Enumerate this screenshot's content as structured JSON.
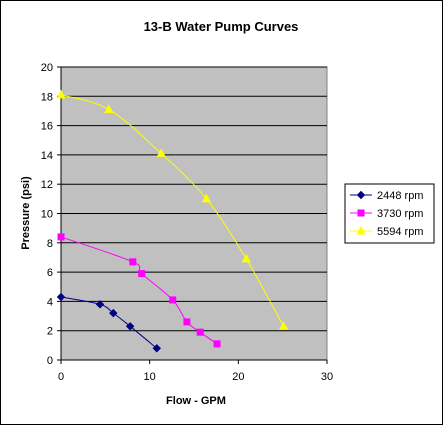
{
  "chart_data": {
    "type": "line",
    "title": "13-B Water Pump Curves",
    "xlabel": "Flow - GPM",
    "ylabel": "Pressure (psi)",
    "xlim": [
      0,
      30
    ],
    "ylim": [
      0,
      20
    ],
    "xticks": [
      "0",
      "10",
      "20",
      "30"
    ],
    "yticks": [
      "0",
      "2",
      "4",
      "6",
      "8",
      "10",
      "12",
      "14",
      "16",
      "18",
      "20"
    ],
    "grid": "horizontal",
    "legend_position": "right",
    "plot_background": "#c0c0c0",
    "series": [
      {
        "name": "2448 rpm",
        "color": "#000080",
        "marker": "diamond",
        "points": [
          [
            0,
            4.3
          ],
          [
            4.4,
            3.8
          ],
          [
            5.9,
            3.2
          ],
          [
            7.8,
            2.3
          ],
          [
            10.8,
            0.8
          ]
        ]
      },
      {
        "name": "3730 rpm",
        "color": "#ff00ff",
        "marker": "square",
        "points": [
          [
            0,
            8.4
          ],
          [
            8.1,
            6.7
          ],
          [
            9.1,
            5.9
          ],
          [
            12.6,
            4.1
          ],
          [
            14.2,
            2.6
          ],
          [
            15.7,
            1.9
          ],
          [
            17.6,
            1.1
          ]
        ]
      },
      {
        "name": "5594 rpm",
        "color": "#ffff00",
        "marker": "triangle",
        "points": [
          [
            0,
            18.1
          ],
          [
            5.4,
            17.1
          ],
          [
            11.3,
            14.1
          ],
          [
            16.4,
            11.0
          ],
          [
            20.9,
            6.9
          ],
          [
            25.1,
            2.3
          ]
        ]
      }
    ]
  }
}
